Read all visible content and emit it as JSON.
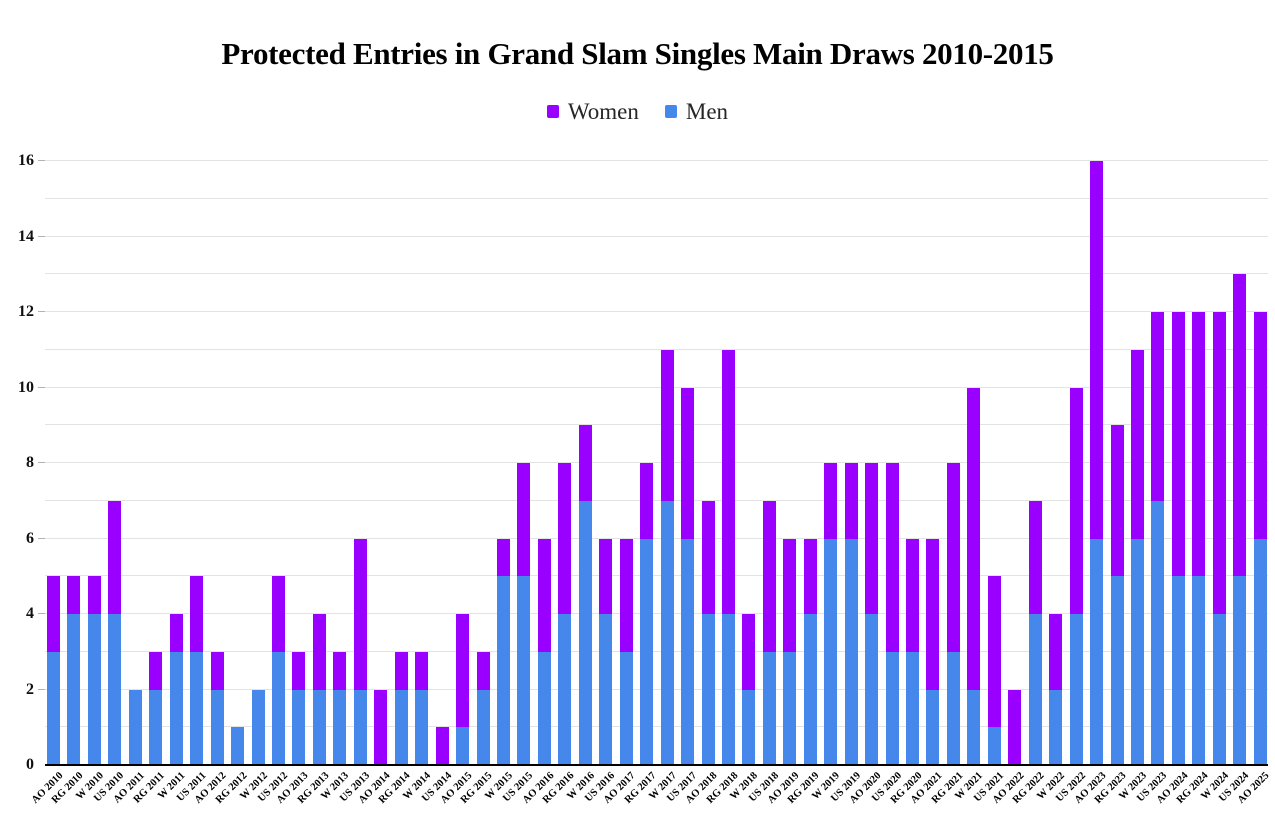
{
  "title": "Protected Entries in Grand Slam Singles Main Draws 2010-2015",
  "legend": {
    "items": [
      {
        "label": "Women",
        "color": "#9900ff"
      },
      {
        "label": "Men",
        "color": "#4687ec"
      }
    ]
  },
  "y_axis": {
    "tick_labels": [
      "0",
      "2",
      "4",
      "6",
      "8",
      "10",
      "12",
      "14",
      "16"
    ],
    "min": 0,
    "max": 16,
    "label_step": 2,
    "minor_gridline_step": 1
  },
  "chart_data": {
    "type": "bar",
    "stacked": true,
    "title": "Protected Entries in Grand Slam Singles Main Draws 2010-2015",
    "legend_position": "top center",
    "grid": "horizontal, every 1 unit, labels every 2",
    "ylim": [
      0,
      16
    ],
    "yticks": [
      0,
      2,
      4,
      6,
      8,
      10,
      12,
      14,
      16
    ],
    "xlabel": "",
    "ylabel": "",
    "categories": [
      "AO 2010",
      "RG 2010",
      "W 2010",
      "US 2010",
      "AO 2011",
      "RG 2011",
      "W 2011",
      "US 2011",
      "AO 2012",
      "RG 2012",
      "W 2012",
      "US 2012",
      "AO 2013",
      "RG 2013",
      "W 2013",
      "US 2013",
      "AO 2014",
      "RG 2014",
      "W 2014",
      "US 2014",
      "AO 2015",
      "RG 2015",
      "W 2015",
      "US 2015",
      "AO 2016",
      "RG 2016",
      "W 2016",
      "US 2016",
      "AO 2017",
      "RG 2017",
      "W 2017",
      "US 2017",
      "AO 2018",
      "RG 2018",
      "W 2018",
      "US 2018",
      "AO 2019",
      "RG 2019",
      "W 2019",
      "US 2019",
      "AO 2020",
      "US 2020",
      "RG 2020",
      "AO 2021",
      "RG 2021",
      "W 2021",
      "US 2021",
      "AO 2022",
      "RG 2022",
      "W 2022",
      "US 2022",
      "AO 2023",
      "RG 2023",
      "W 2023",
      "US 2023",
      "AO 2024",
      "RG 2024",
      "W 2024",
      "US 2024",
      "AO 2025"
    ],
    "series": [
      {
        "name": "Men",
        "color": "#4687ec",
        "values": [
          3,
          4,
          4,
          4,
          2,
          2,
          3,
          3,
          2,
          1,
          2,
          3,
          2,
          2,
          2,
          2,
          0,
          2,
          2,
          0,
          1,
          2,
          5,
          5,
          3,
          4,
          7,
          4,
          3,
          6,
          7,
          6,
          4,
          4,
          2,
          3,
          3,
          4,
          6,
          6,
          4,
          3,
          3,
          2,
          3,
          2,
          1,
          0,
          4,
          2,
          4,
          6,
          5,
          6,
          7,
          5,
          5,
          4,
          5,
          6
        ]
      },
      {
        "name": "Women",
        "color": "#9900ff",
        "values": [
          2,
          1,
          1,
          3,
          0,
          1,
          1,
          2,
          1,
          0,
          0,
          2,
          1,
          2,
          1,
          4,
          2,
          1,
          1,
          1,
          3,
          1,
          1,
          3,
          3,
          4,
          2,
          2,
          3,
          2,
          4,
          4,
          3,
          7,
          2,
          4,
          3,
          2,
          2,
          2,
          4,
          5,
          3,
          4,
          5,
          8,
          4,
          2,
          3,
          2,
          6,
          10,
          4,
          5,
          5,
          7,
          7,
          8,
          8,
          6
        ]
      }
    ]
  }
}
